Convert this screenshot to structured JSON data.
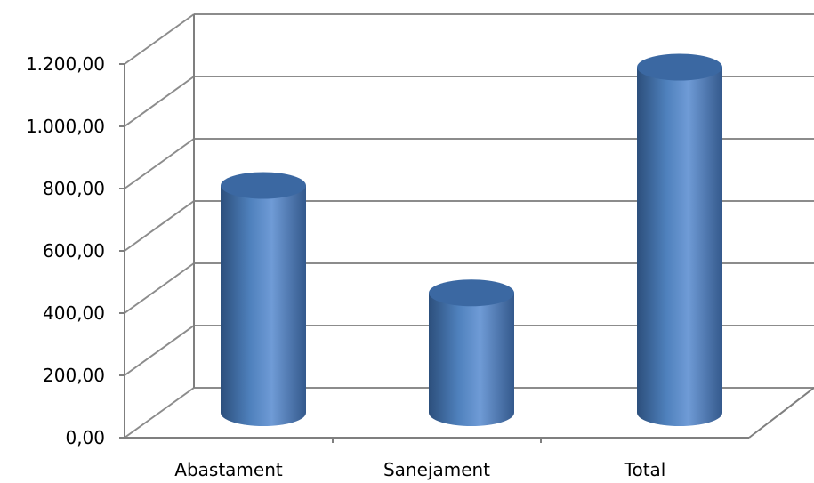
{
  "chart_data": {
    "type": "bar",
    "style": "3d-cylinder",
    "categories": [
      "Abastament",
      "Sanejament",
      "Total"
    ],
    "values": [
      730,
      385,
      1110
    ],
    "ylim": [
      0,
      1200
    ],
    "yticks": [
      0,
      200,
      400,
      600,
      800,
      1000,
      1200
    ],
    "ytick_labels": [
      "0,00",
      "200,00",
      "400,00",
      "600,00",
      "800,00",
      "1.000,00",
      "1.200,00"
    ],
    "grid": true,
    "legend": "none",
    "colors": {
      "bar_fill": "#4f81bd",
      "bar_dark": "#2c4f7c",
      "bar_light": "#7aa6dc",
      "bar_top": "#3b68a2",
      "grid": "#8c8c8c",
      "axis": "#7f7f7f"
    }
  }
}
